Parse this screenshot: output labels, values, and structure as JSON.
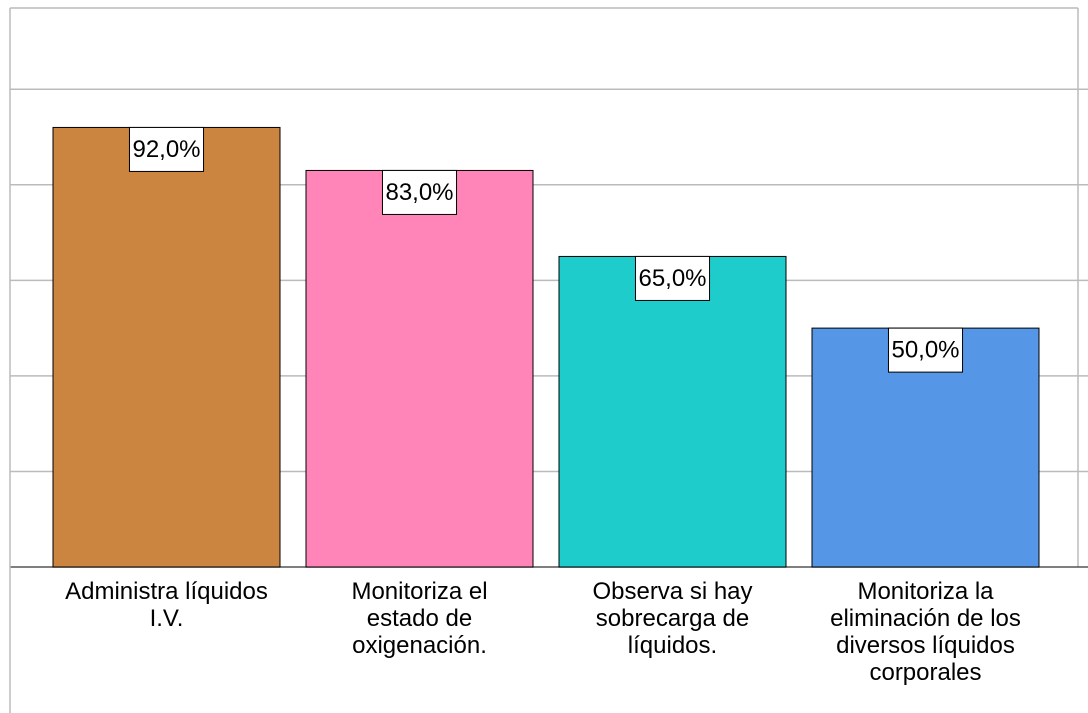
{
  "chart_data": {
    "type": "bar",
    "categories": [
      "Administra líquidos\nI.V.",
      "Monitoriza el\nestado de\noxigenación.",
      "Observa si hay\nsobrecarga de\nlíquidos.",
      "Monitoriza la\neliminación de los\ndiversos líquidos\ncorporales"
    ],
    "values": [
      92,
      83,
      65,
      50
    ],
    "value_labels": [
      "92,0%",
      "83,0%",
      "65,0%",
      "50,0%"
    ],
    "colors": [
      "#cc8540",
      "#ff85b8",
      "#1ecccc",
      "#5597e6"
    ],
    "ylim": [
      0,
      117
    ],
    "yticks": [
      0,
      20,
      40,
      60,
      80,
      100
    ],
    "grid": true
  }
}
